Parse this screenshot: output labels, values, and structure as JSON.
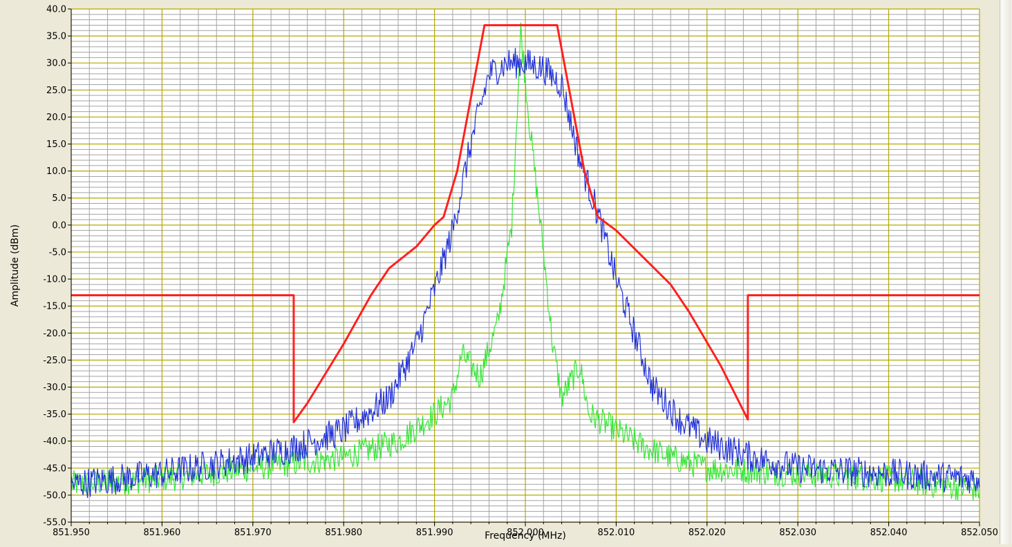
{
  "chart_data": {
    "type": "line",
    "title": "",
    "xlabel": "Frequency (MHz)",
    "ylabel": "Amplitude (dBm)",
    "xlim": [
      851.95,
      852.05
    ],
    "ylim": [
      -55,
      40
    ],
    "x_ticks": [
      "851.950",
      "851.960",
      "851.970",
      "851.980",
      "851.990",
      "852.000",
      "852.010",
      "852.020",
      "852.030",
      "852.040",
      "852.050"
    ],
    "y_ticks": [
      "40.0",
      "35.0",
      "30.0",
      "25.0",
      "20.0",
      "15.0",
      "10.0",
      "5.0",
      "0.0",
      "-5.0",
      "-10.0",
      "-15.0",
      "-20.0",
      "-25.0",
      "-30.0",
      "-35.0",
      "-40.0",
      "-45.0",
      "-50.0",
      "-55.0"
    ],
    "grid": true,
    "legend": "none",
    "series": [
      {
        "color": "#ff2020",
        "points": [
          [
            851.95,
            -13
          ],
          [
            851.9745,
            -13
          ],
          [
            851.9745,
            -36.5
          ],
          [
            851.976,
            -33
          ],
          [
            851.98,
            -22
          ],
          [
            851.983,
            -13
          ],
          [
            851.985,
            -8
          ],
          [
            851.988,
            -4
          ],
          [
            851.99,
            0
          ],
          [
            851.991,
            1.5
          ],
          [
            851.9925,
            10
          ],
          [
            851.9955,
            37
          ],
          [
            852.0035,
            37
          ],
          [
            852.0065,
            10
          ],
          [
            852.008,
            1.5
          ],
          [
            852.01,
            -1
          ],
          [
            852.013,
            -6
          ],
          [
            852.016,
            -11
          ],
          [
            852.018,
            -16
          ],
          [
            852.0215,
            -26
          ],
          [
            852.0245,
            -36
          ],
          [
            852.0245,
            -13
          ],
          [
            852.05,
            -13
          ]
        ]
      },
      {
        "color": "#1f2fd9",
        "envelope": [
          [
            851.95,
            -48
          ],
          [
            851.96,
            -46
          ],
          [
            851.97,
            -43
          ],
          [
            851.975,
            -41
          ],
          [
            851.98,
            -38
          ],
          [
            851.985,
            -32
          ],
          [
            851.988,
            -22
          ],
          [
            851.99,
            -12
          ],
          [
            851.992,
            -1
          ],
          [
            851.994,
            15
          ],
          [
            851.996,
            28
          ],
          [
            851.998,
            30
          ],
          [
            852.0,
            30
          ],
          [
            852.002,
            29
          ],
          [
            852.004,
            26
          ],
          [
            852.006,
            12
          ],
          [
            852.008,
            2
          ],
          [
            852.01,
            -10
          ],
          [
            852.012,
            -20
          ],
          [
            852.014,
            -30
          ],
          [
            852.017,
            -36
          ],
          [
            852.02,
            -40
          ],
          [
            852.025,
            -43
          ],
          [
            852.03,
            -45
          ],
          [
            852.04,
            -46
          ],
          [
            852.05,
            -47
          ]
        ],
        "noise": 1.8
      },
      {
        "color": "#33e633",
        "envelope": [
          [
            851.95,
            -48
          ],
          [
            851.96,
            -47
          ],
          [
            851.97,
            -45
          ],
          [
            851.975,
            -44
          ],
          [
            851.98,
            -43
          ],
          [
            851.986,
            -40
          ],
          [
            851.99,
            -35
          ],
          [
            851.992,
            -32
          ],
          [
            851.993,
            -24
          ],
          [
            851.995,
            -28
          ],
          [
            851.997,
            -18
          ],
          [
            851.9985,
            0
          ],
          [
            851.9995,
            36
          ],
          [
            852.0005,
            18
          ],
          [
            852.002,
            -5
          ],
          [
            852.003,
            -22
          ],
          [
            852.004,
            -32
          ],
          [
            852.005,
            -29
          ],
          [
            852.006,
            -26
          ],
          [
            852.007,
            -35
          ],
          [
            852.01,
            -38
          ],
          [
            852.013,
            -41
          ],
          [
            852.016,
            -43
          ],
          [
            852.02,
            -45
          ],
          [
            852.03,
            -46
          ],
          [
            852.04,
            -47
          ],
          [
            852.05,
            -49
          ]
        ],
        "noise": 1.6
      }
    ]
  },
  "colors": {
    "plot_bg": "#ffffff",
    "minor_grid": "#a3a3a3",
    "major_grid": "#b3a800",
    "window_bg": "#ece9d8"
  }
}
